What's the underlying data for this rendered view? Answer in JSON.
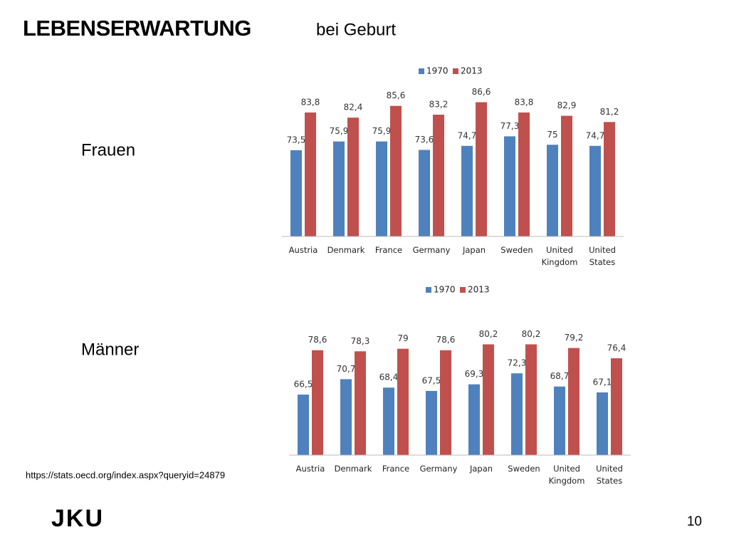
{
  "header": {
    "title": "LEBENSERWARTUNG",
    "subtitle": "bei Geburt"
  },
  "source": "https://stats.oecd.org/index.aspx?queryid=24879",
  "page_number": "10",
  "logo": "JKU",
  "chart_data": [
    {
      "type": "bar",
      "title": "Frauen",
      "categories": [
        "Austria",
        "Denmark",
        "France",
        "Germany",
        "Japan",
        "Sweden",
        "United Kingdom",
        "United States"
      ],
      "series": [
        {
          "name": "1970",
          "color": "#4f81bd",
          "values": [
            73.5,
            75.9,
            75.9,
            73.6,
            74.7,
            77.3,
            75,
            74.7
          ],
          "value_labels": [
            "73,5",
            "75,9",
            "75,9",
            "73,6",
            "74,7",
            "77,3",
            "75",
            "74,7"
          ]
        },
        {
          "name": "2013",
          "color": "#c0504d",
          "values": [
            83.8,
            82.4,
            85.6,
            83.2,
            86.6,
            83.8,
            82.9,
            81.2
          ],
          "value_labels": [
            "83,8",
            "82,4",
            "85,6",
            "83,2",
            "86,6",
            "83,8",
            "82,9",
            "81,2"
          ]
        }
      ],
      "ylim": [
        50,
        90
      ],
      "legend": "top"
    },
    {
      "type": "bar",
      "title": "Männer",
      "categories": [
        "Austria",
        "Denmark",
        "France",
        "Germany",
        "Japan",
        "Sweden",
        "United Kingdom",
        "United States"
      ],
      "series": [
        {
          "name": "1970",
          "color": "#4f81bd",
          "values": [
            66.5,
            70.7,
            68.4,
            67.5,
            69.3,
            72.3,
            68.7,
            67.1
          ],
          "value_labels": [
            "66,5",
            "70,7",
            "68,4",
            "67,5",
            "69,3",
            "72,3",
            "68,7",
            "67,1"
          ]
        },
        {
          "name": "2013",
          "color": "#c0504d",
          "values": [
            78.6,
            78.3,
            79,
            78.6,
            80.2,
            80.2,
            79.2,
            76.4
          ],
          "value_labels": [
            "78,6",
            "78,3",
            "79",
            "78,6",
            "80,2",
            "80,2",
            "79,2",
            "76,4"
          ]
        }
      ],
      "ylim": [
        50,
        90
      ],
      "legend": "top"
    }
  ]
}
